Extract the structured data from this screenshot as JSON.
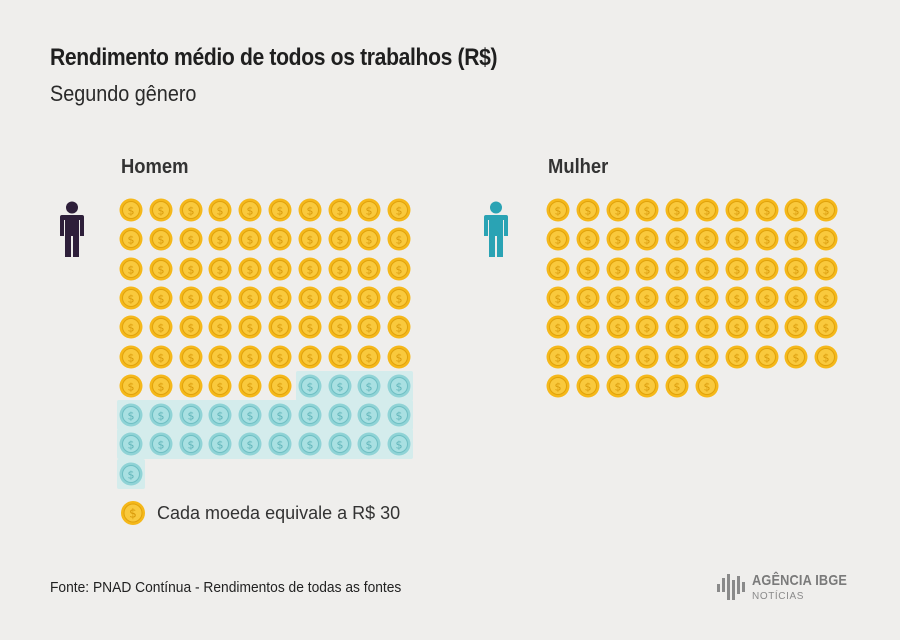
{
  "header": {
    "title": "Rendimento médio de todos os trabalhos (R$)",
    "subtitle": "Segundo gênero"
  },
  "colors": {
    "coin_gold": "#f5b81a",
    "coin_gold_inner": "#f9c93d",
    "coin_teal": "#8fd3d6",
    "coin_teal_inner": "#a9e0e2",
    "homem_icon": "#2e1f3a",
    "mulher_icon": "#2aa3b4"
  },
  "chart_data": {
    "type": "pictogram",
    "unit_value": 30,
    "coins_per_row": 10,
    "series": [
      {
        "name": "Homem",
        "icon": "man-icon",
        "gold_coins": 66,
        "gap_coins": 25,
        "total_coins": 91
      },
      {
        "name": "Mulher",
        "icon": "woman-icon",
        "gold_coins": 66,
        "gap_coins": 0,
        "total_coins": 66
      }
    ]
  },
  "legend": {
    "text": "Cada moeda equivale a R$ 30",
    "icon": "coin-icon"
  },
  "footer": {
    "source": "Fonte: PNAD Contínua - Rendimentos de todas as fontes",
    "logo_main": "AGÊNCIA IBGE",
    "logo_sub": "NOTÍCIAS"
  }
}
